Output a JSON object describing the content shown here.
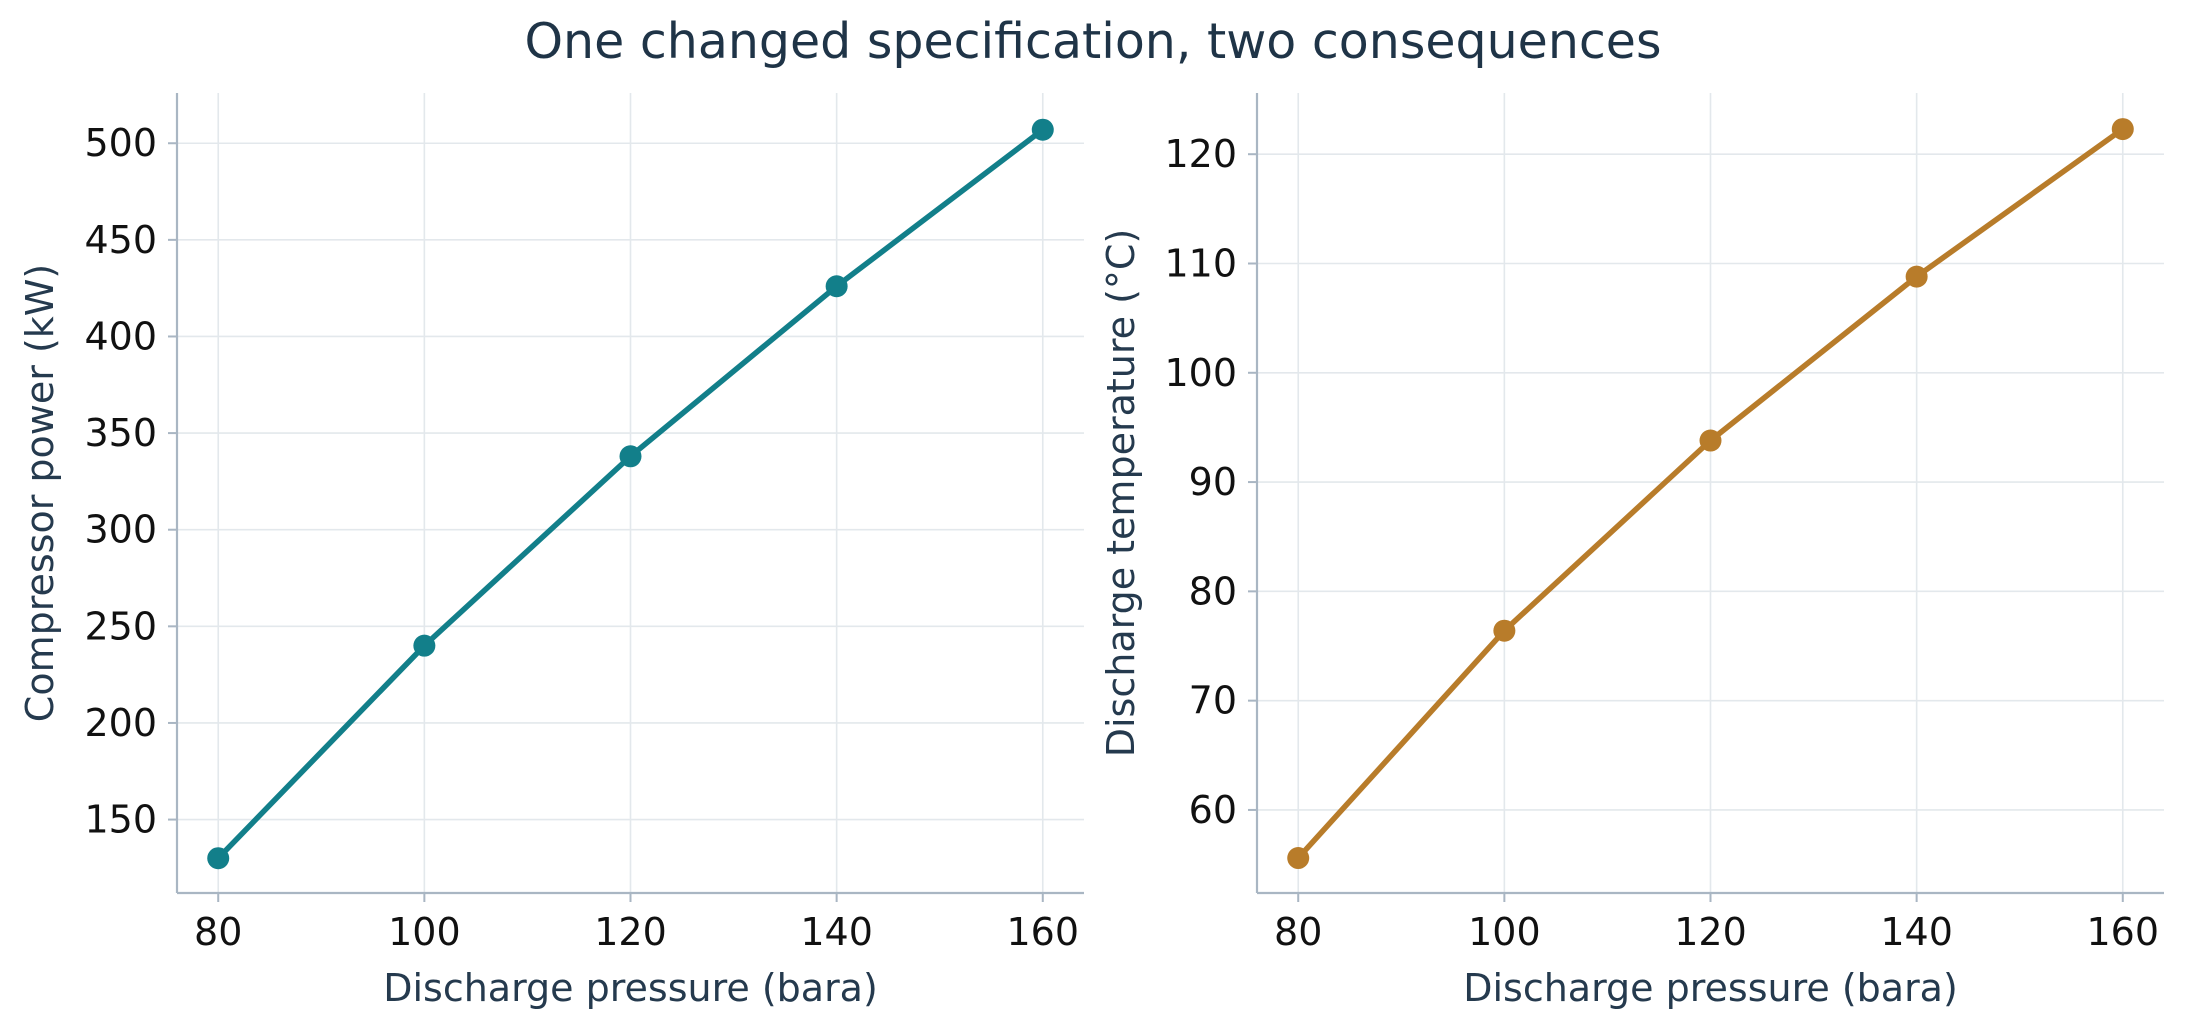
{
  "figure": {
    "title": "One changed specification, two consequences"
  },
  "style": {
    "grid_color": "#e3e8ec",
    "spine_color": "#a9b6c3",
    "title_color": "#1f3447",
    "label_color": "#253a4e"
  },
  "chart_data": [
    {
      "type": "line",
      "title": "",
      "xlabel": "Discharge pressure (bara)",
      "ylabel": "Compressor power (kW)",
      "x": [
        80,
        100,
        120,
        140,
        160
      ],
      "series": [
        {
          "values": [
            130,
            240,
            338,
            426,
            507
          ],
          "color": "#127f8a"
        }
      ],
      "xlim": [
        76,
        164
      ],
      "ylim": [
        112,
        526
      ],
      "xticks": [
        80,
        100,
        120,
        140,
        160
      ],
      "yticks": [
        150,
        200,
        250,
        300,
        350,
        400,
        450,
        500
      ],
      "grid": true,
      "markers": true
    },
    {
      "type": "line",
      "title": "",
      "xlabel": "Discharge pressure (bara)",
      "ylabel": "Discharge temperature (°C)",
      "x": [
        80,
        100,
        120,
        140,
        160
      ],
      "series": [
        {
          "values": [
            55.6,
            76.4,
            93.8,
            108.8,
            122.3
          ],
          "color": "#b87c2a"
        }
      ],
      "xlim": [
        76,
        164
      ],
      "ylim": [
        52.4,
        125.6
      ],
      "xticks": [
        80,
        100,
        120,
        140,
        160
      ],
      "yticks": [
        60,
        70,
        80,
        90,
        100,
        110,
        120
      ],
      "grid": true,
      "markers": true
    }
  ]
}
